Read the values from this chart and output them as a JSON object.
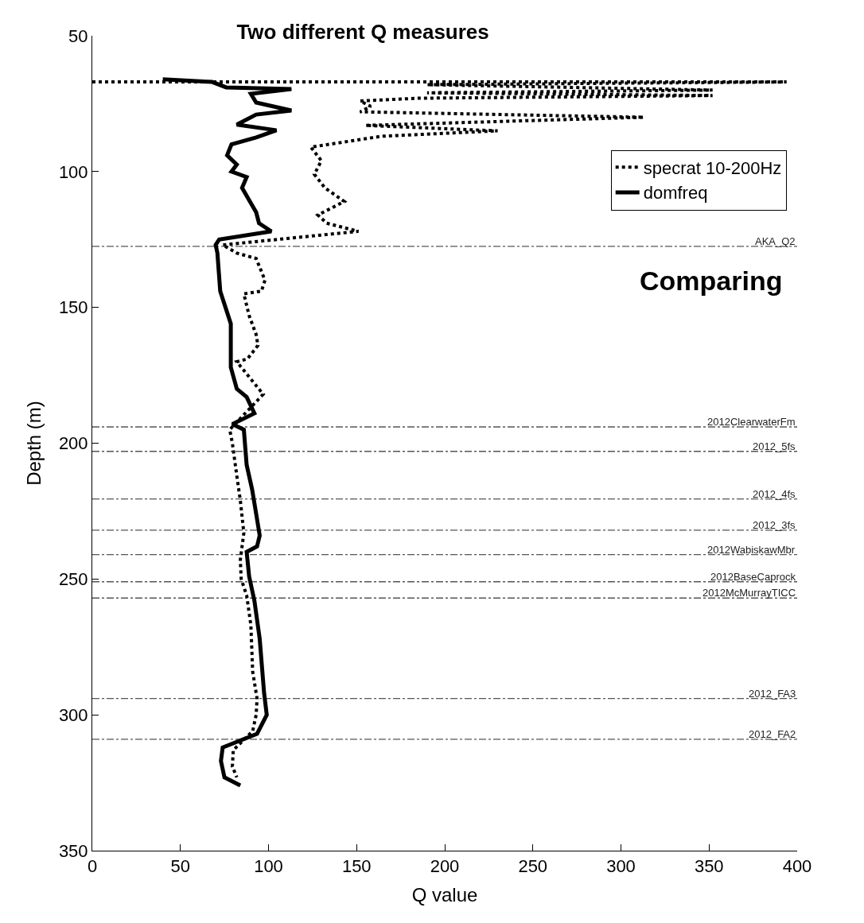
{
  "chart_data": {
    "type": "line",
    "title": "Two different Q measures",
    "xlabel": "Q value",
    "ylabel": "Depth (m)",
    "xlim": [
      0,
      400
    ],
    "xticks": [
      0,
      50,
      100,
      150,
      200,
      250,
      300,
      350,
      400
    ],
    "ylim": [
      350,
      50
    ],
    "yticks": [
      50,
      100,
      150,
      200,
      250,
      300,
      350
    ],
    "grid": false,
    "legend": "top right",
    "marker": "none",
    "series": [
      {
        "name": "specrat 10-200Hz",
        "color": "#000000",
        "line_style": "dotted",
        "x": [
          0,
          394,
          190,
          352,
          190,
          352,
          185,
          152,
          158,
          152,
          313,
          155,
          230,
          164,
          124,
          130,
          126,
          132,
          143,
          128,
          133,
          151,
          74,
          82,
          93,
          98,
          96,
          86,
          89,
          93,
          94,
          88,
          82,
          97,
          78,
          79.5,
          82,
          84,
          86,
          84,
          84.5,
          87.6,
          90,
          91,
          93.5,
          93,
          91,
          80,
          79.5,
          82
        ],
        "values": [
          67,
          67,
          68,
          70,
          71,
          72,
          73,
          74,
          76,
          78,
          80,
          83,
          85,
          87,
          91,
          96,
          101,
          106,
          111,
          116,
          119,
          122,
          127,
          130,
          132,
          140,
          144,
          145,
          153,
          160,
          164,
          169,
          170,
          182,
          195,
          200,
          212,
          221,
          233,
          243,
          250,
          256,
          267,
          284,
          294,
          300,
          306,
          313,
          319,
          323
        ]
      },
      {
        "name": "domfreq",
        "color": "#000000",
        "line_style": "solid",
        "x": [
          40,
          68,
          76,
          113,
          90,
          93,
          113,
          93,
          82,
          104.5,
          93,
          79,
          76.5,
          82,
          79,
          87.6,
          85,
          93,
          94.6,
          101.6,
          72,
          70,
          71,
          72.6,
          78.6,
          78.6,
          78.6,
          82,
          87.6,
          92,
          79.5,
          86,
          87.6,
          90.7,
          93,
          95,
          93.5,
          87.6,
          89,
          92,
          95,
          97.5,
          99,
          93.5,
          74,
          73,
          75,
          84
        ],
        "values": [
          66,
          67,
          69,
          69.6,
          71.4,
          74.6,
          77.5,
          79,
          82.7,
          84.8,
          87.4,
          90,
          94,
          97.4,
          100,
          102,
          106,
          115,
          119,
          122,
          125,
          127,
          130,
          144,
          156,
          165,
          172,
          180,
          183,
          189,
          193,
          195,
          208,
          217,
          226,
          234,
          238,
          240,
          249,
          258,
          272,
          292,
          300,
          307,
          312,
          317,
          323,
          326
        ]
      }
    ],
    "ref_lines": [
      {
        "axis": "y",
        "value": 127.5,
        "label": "AKA_Q2"
      },
      {
        "axis": "y",
        "value": 194,
        "label": "2012ClearwaterFm"
      },
      {
        "axis": "y",
        "value": 203,
        "label": "2012_5fs"
      },
      {
        "axis": "y",
        "value": 220.5,
        "label": "2012_4fs"
      },
      {
        "axis": "y",
        "value": 232,
        "label": "2012_3fs"
      },
      {
        "axis": "y",
        "value": 241,
        "label": "2012WabiskawMbr"
      },
      {
        "axis": "y",
        "value": 251,
        "label": "2012BaseCaprock"
      },
      {
        "axis": "y",
        "value": 257,
        "label": "2012McMurrayTICC"
      },
      {
        "axis": "y",
        "value": 294,
        "label": "2012_FA3"
      },
      {
        "axis": "y",
        "value": 309,
        "label": "2012_FA2"
      }
    ],
    "annotations": [
      "Comparing"
    ]
  }
}
